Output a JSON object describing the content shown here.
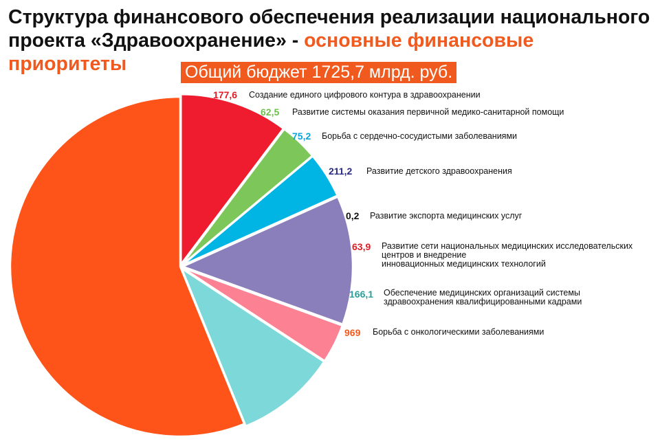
{
  "header": {
    "title_main": "Структура финансового обеспечения реализации национального проекта «Здравоохранение» -",
    "title_accent": "основные финансовые приоритеты",
    "budget_label": "Общий бюджет 1725,7 млрд. руб."
  },
  "colors": {
    "accent": "#f05a1e"
  },
  "chart_data": {
    "type": "pie",
    "title": "Структура финансового обеспечения реализации национального проекта «Здравоохранение» - основные финансовые приоритеты",
    "subtitle": "Общий бюджет 1725,7 млрд. руб.",
    "total": 1725.7,
    "start_angle_deg": 0,
    "direction": "clockwise",
    "slices": [
      {
        "label": "Создание единого цифрового контура в здравоохранении",
        "value": 177.6,
        "value_text": "177,6",
        "color": "#ee1c2e",
        "value_color": "#e31b23"
      },
      {
        "label": "Развитие системы оказания первичной медико-санитарной помощи",
        "value": 62.5,
        "value_text": "62,5",
        "color": "#7cc65a",
        "value_color": "#6cbf4a"
      },
      {
        "label": "Борьба с сердечно-сосудистыми заболеваниями",
        "value": 75.2,
        "value_text": "75,2",
        "color": "#00b4e4",
        "value_color": "#0aa5d9"
      },
      {
        "label": "Развитие детского здравоохранения",
        "value": 211.2,
        "value_text": "211,2",
        "color": "#8a7ebb",
        "value_color": "#2b2a83"
      },
      {
        "label": "Развитие экспорта медицинских услуг",
        "value": 0.2,
        "value_text": "0,2",
        "color": "#333333",
        "value_color": "#111111"
      },
      {
        "label": "Развитие сети национальных медицинских исследовательских центров и внедрение инновационных медицинских технологий",
        "value": 63.9,
        "value_text": "63,9",
        "color": "#fb8193",
        "value_color": "#e31b23"
      },
      {
        "label": "Обеспечение медицинских организаций системы здравоохранения квалифицированными кадрами",
        "value": 166.1,
        "value_text": "166,1",
        "color": "#7dd9d9",
        "value_color": "#2a9e98"
      },
      {
        "label": "Борьба с онкологическими заболеваниями",
        "value": 969,
        "value_text": "969",
        "color": "#fe5319",
        "value_color": "#f05a1e"
      }
    ]
  }
}
